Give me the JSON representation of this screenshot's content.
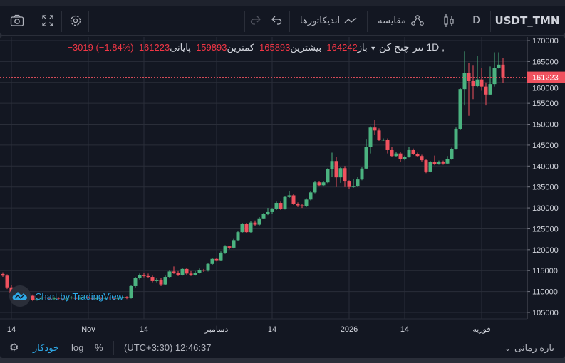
{
  "toolbar": {
    "symbol": "USDT_TMN",
    "interval": "D",
    "chart_type_icon": "candles-icon",
    "compare_label": "مقایسه",
    "indicators_label": "اندیکاتورها",
    "icons": [
      "camera-icon",
      "fullscreen-icon",
      "gear-icon",
      "undo-icon",
      "redo-icon",
      "compare-icon",
      "wave-icon"
    ]
  },
  "legend": {
    "title": "تتر چنج کن",
    "interval": ", 1D",
    "open_label": "باز",
    "open": "164242",
    "high_label": "بیشترین",
    "high": "165893",
    "low_label": "کمترین",
    "low": "159893",
    "close_label": "پایانی",
    "close": "161223",
    "change": "−3019 (−1.84%)"
  },
  "price_tag": "161223",
  "watermark": "Chart by TradingView",
  "bottom": {
    "auto": "خودکار",
    "log": "log",
    "percent": "%",
    "time": "(UTC+3:30) 12:46:37",
    "range": "بازه زمانی"
  },
  "colors": {
    "up": "#4bb380",
    "down": "#f0525f",
    "background": "#131722",
    "grid": "#2a2e39",
    "accent": "#2962ff"
  },
  "chart_data": {
    "type": "candlestick",
    "interval": "1D",
    "ylim": [
      103000,
      171000
    ],
    "y_ticks": [
      105000,
      110000,
      115000,
      120000,
      125000,
      130000,
      135000,
      140000,
      145000,
      150000,
      155000,
      160000,
      165000,
      170000
    ],
    "x_tick_labels": [
      "14",
      "Nov",
      "14",
      "دسامبر",
      "14",
      "2026",
      "14",
      "فوریه"
    ],
    "x_tick_candle_index": [
      2,
      20,
      33,
      50,
      63,
      81,
      94,
      112
    ],
    "last_price": 161223,
    "grid": true,
    "candles_ohlc": [
      [
        114200,
        114600,
        113500,
        113800
      ],
      [
        113800,
        114100,
        110600,
        111000
      ],
      [
        111000,
        111500,
        109100,
        109500
      ],
      [
        109500,
        110400,
        109000,
        110000
      ],
      [
        110000,
        111500,
        109800,
        110200
      ],
      [
        110200,
        110500,
        109200,
        109500
      ],
      [
        109500,
        109900,
        108700,
        109000
      ],
      [
        109000,
        109300,
        107700,
        108000
      ],
      [
        108000,
        108600,
        107800,
        108300
      ],
      [
        108300,
        108900,
        108000,
        108600
      ],
      [
        108600,
        108800,
        108100,
        108400
      ],
      [
        108400,
        108600,
        107900,
        108200
      ],
      [
        108200,
        108800,
        108000,
        108500
      ],
      [
        108500,
        108700,
        108000,
        108300
      ],
      [
        108300,
        108500,
        107800,
        108100
      ],
      [
        108100,
        108700,
        107900,
        108400
      ],
      [
        108400,
        108900,
        108200,
        108600
      ],
      [
        108600,
        108800,
        108000,
        108300
      ],
      [
        108300,
        108800,
        108100,
        108500
      ],
      [
        108500,
        109000,
        108300,
        108700
      ],
      [
        108700,
        108900,
        108100,
        108400
      ],
      [
        108400,
        108600,
        107900,
        108200
      ],
      [
        108200,
        108800,
        108000,
        108500
      ],
      [
        108500,
        108700,
        108000,
        108300
      ],
      [
        108300,
        108900,
        108100,
        108600
      ],
      [
        108600,
        108800,
        108100,
        108400
      ],
      [
        108400,
        108600,
        107900,
        108200
      ],
      [
        108200,
        108800,
        108000,
        108500
      ],
      [
        108500,
        109000,
        108300,
        108700
      ],
      [
        108700,
        108900,
        108200,
        108500
      ],
      [
        108500,
        111600,
        108300,
        111300
      ],
      [
        111300,
        113500,
        111000,
        113200
      ],
      [
        113200,
        114300,
        112900,
        114000
      ],
      [
        114000,
        114400,
        113400,
        113700
      ],
      [
        113700,
        114300,
        113200,
        113500
      ],
      [
        113500,
        113800,
        112200,
        112500
      ],
      [
        112500,
        113300,
        112200,
        112800
      ],
      [
        112800,
        113200,
        111300,
        111700
      ],
      [
        111700,
        113800,
        111500,
        113500
      ],
      [
        113500,
        115100,
        113300,
        114800
      ],
      [
        114800,
        116000,
        114200,
        114400
      ],
      [
        114400,
        114900,
        113700,
        114000
      ],
      [
        114000,
        115600,
        113800,
        115400
      ],
      [
        115400,
        115600,
        114000,
        114300
      ],
      [
        114300,
        114900,
        113700,
        114000
      ],
      [
        114000,
        114900,
        113800,
        114500
      ],
      [
        114500,
        115500,
        114300,
        115200
      ],
      [
        115200,
        115400,
        114700,
        115000
      ],
      [
        115000,
        116900,
        114800,
        116600
      ],
      [
        116600,
        118100,
        116400,
        117800
      ],
      [
        117800,
        118100,
        117200,
        117500
      ],
      [
        117500,
        119600,
        117300,
        119300
      ],
      [
        119300,
        121100,
        119000,
        120800
      ],
      [
        120800,
        121000,
        120100,
        120500
      ],
      [
        120500,
        122600,
        120300,
        122300
      ],
      [
        122300,
        124500,
        122100,
        124200
      ],
      [
        124200,
        126400,
        124000,
        126100
      ],
      [
        126100,
        126300,
        123900,
        124200
      ],
      [
        124200,
        126800,
        124000,
        126500
      ],
      [
        126500,
        127000,
        125700,
        126000
      ],
      [
        126000,
        127800,
        125800,
        127500
      ],
      [
        127500,
        128800,
        127300,
        128500
      ],
      [
        128500,
        130000,
        128300,
        129000
      ],
      [
        129000,
        130000,
        128500,
        129700
      ],
      [
        129700,
        131500,
        129500,
        131200
      ],
      [
        131200,
        131500,
        129500,
        129800
      ],
      [
        129800,
        132900,
        129600,
        132600
      ],
      [
        132600,
        134000,
        132400,
        133000
      ],
      [
        133000,
        133300,
        130700,
        131000
      ],
      [
        131000,
        131300,
        130200,
        130600
      ],
      [
        130600,
        131000,
        130000,
        130400
      ],
      [
        130400,
        132300,
        130200,
        132000
      ],
      [
        132000,
        134000,
        131800,
        133700
      ],
      [
        133700,
        136400,
        133500,
        136100
      ],
      [
        136100,
        136400,
        135100,
        135400
      ],
      [
        135400,
        136400,
        135100,
        136100
      ],
      [
        136100,
        139500,
        135900,
        139200
      ],
      [
        139200,
        143200,
        137500,
        141200
      ],
      [
        141200,
        142100,
        135000,
        137300
      ],
      [
        137300,
        139800,
        136000,
        139500
      ],
      [
        139500,
        140000,
        135000,
        136300
      ],
      [
        136300,
        136600,
        134600,
        135000
      ],
      [
        135000,
        137000,
        134800,
        135200
      ],
      [
        135200,
        137500,
        135000,
        136800
      ],
      [
        136800,
        139700,
        136600,
        139400
      ],
      [
        139400,
        146500,
        139200,
        144600
      ],
      [
        144600,
        149500,
        143000,
        149200
      ],
      [
        149200,
        151000,
        147500,
        148500
      ],
      [
        148500,
        149000,
        146000,
        146300
      ],
      [
        146300,
        146600,
        146000,
        146300
      ],
      [
        146300,
        146600,
        143000,
        143800
      ],
      [
        143800,
        144500,
        142100,
        142400
      ],
      [
        142400,
        143300,
        142200,
        143000
      ],
      [
        143000,
        143300,
        141000,
        141600
      ],
      [
        141600,
        142500,
        141400,
        142200
      ],
      [
        142200,
        144500,
        142000,
        143800
      ],
      [
        143800,
        144200,
        142600,
        142900
      ],
      [
        142900,
        143200,
        142100,
        142400
      ],
      [
        142400,
        142700,
        141100,
        141400
      ],
      [
        141400,
        141700,
        138300,
        138700
      ],
      [
        138700,
        141200,
        138500,
        140900
      ],
      [
        140900,
        142500,
        140200,
        140500
      ],
      [
        140500,
        141300,
        140300,
        141000
      ],
      [
        141000,
        141300,
        140300,
        140600
      ],
      [
        140600,
        142400,
        140400,
        141700
      ],
      [
        141700,
        144400,
        141500,
        144100
      ],
      [
        144100,
        149200,
        143900,
        148900
      ],
      [
        148900,
        158700,
        148700,
        158400
      ],
      [
        158400,
        167400,
        154500,
        162200
      ],
      [
        162200,
        164700,
        152000,
        160300
      ],
      [
        160300,
        164000,
        156000,
        159100
      ],
      [
        159100,
        166400,
        158900,
        160700
      ],
      [
        160700,
        163500,
        158000,
        159000
      ],
      [
        159000,
        160000,
        154500,
        157100
      ],
      [
        157100,
        163800,
        156900,
        159600
      ],
      [
        159600,
        167200,
        159000,
        163500
      ],
      [
        163500,
        167200,
        163300,
        164242
      ],
      [
        164242,
        165893,
        159893,
        161223
      ]
    ]
  }
}
